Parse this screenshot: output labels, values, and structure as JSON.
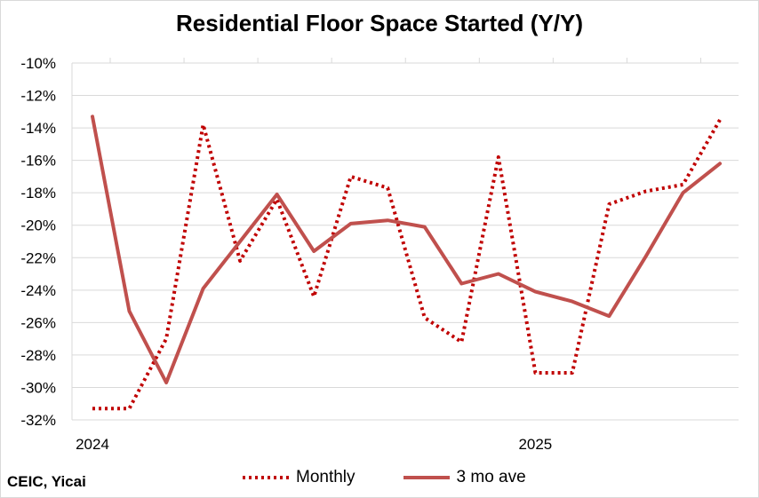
{
  "chart_data": {
    "type": "line",
    "title": "Residential Floor Space Started (Y/Y)",
    "source": "CEIC, Yicai",
    "x_labels": [
      "2024",
      "2025"
    ],
    "ylim": [
      -32,
      -10
    ],
    "yticks": [
      -10,
      -12,
      -14,
      -16,
      -18,
      -20,
      -22,
      -24,
      -26,
      -28,
      -30,
      -32
    ],
    "ytick_labels": [
      "-10%",
      "-12%",
      "-14%",
      "-16%",
      "-18%",
      "-20%",
      "-22%",
      "-24%",
      "-26%",
      "-28%",
      "-30%",
      "-32%"
    ],
    "grid": true,
    "legend_position": "bottom",
    "x_positions": [
      0,
      1,
      2,
      3,
      4,
      5,
      6,
      7,
      8,
      9,
      10,
      11,
      12,
      13,
      14,
      15,
      16,
      17
    ],
    "series": [
      {
        "name": "Monthly",
        "style": "dotted",
        "color": "#c00000",
        "values": [
          -31.3,
          -31.3,
          -27.0,
          -13.8,
          -22.2,
          -18.4,
          -24.4,
          -17.0,
          -17.7,
          -25.7,
          -27.2,
          -15.8,
          -29.1,
          -29.1,
          -18.7,
          -17.9,
          -17.5,
          -13.5
        ]
      },
      {
        "name": "3 mo ave",
        "style": "solid",
        "color": "#c0504d",
        "values": [
          -13.3,
          -25.3,
          -29.7,
          -23.9,
          -21.0,
          -18.1,
          -21.6,
          -19.9,
          -19.7,
          -20.1,
          -23.6,
          -23.0,
          -24.1,
          -24.7,
          -25.6,
          -21.9,
          -18.0,
          -16.2
        ]
      }
    ]
  }
}
